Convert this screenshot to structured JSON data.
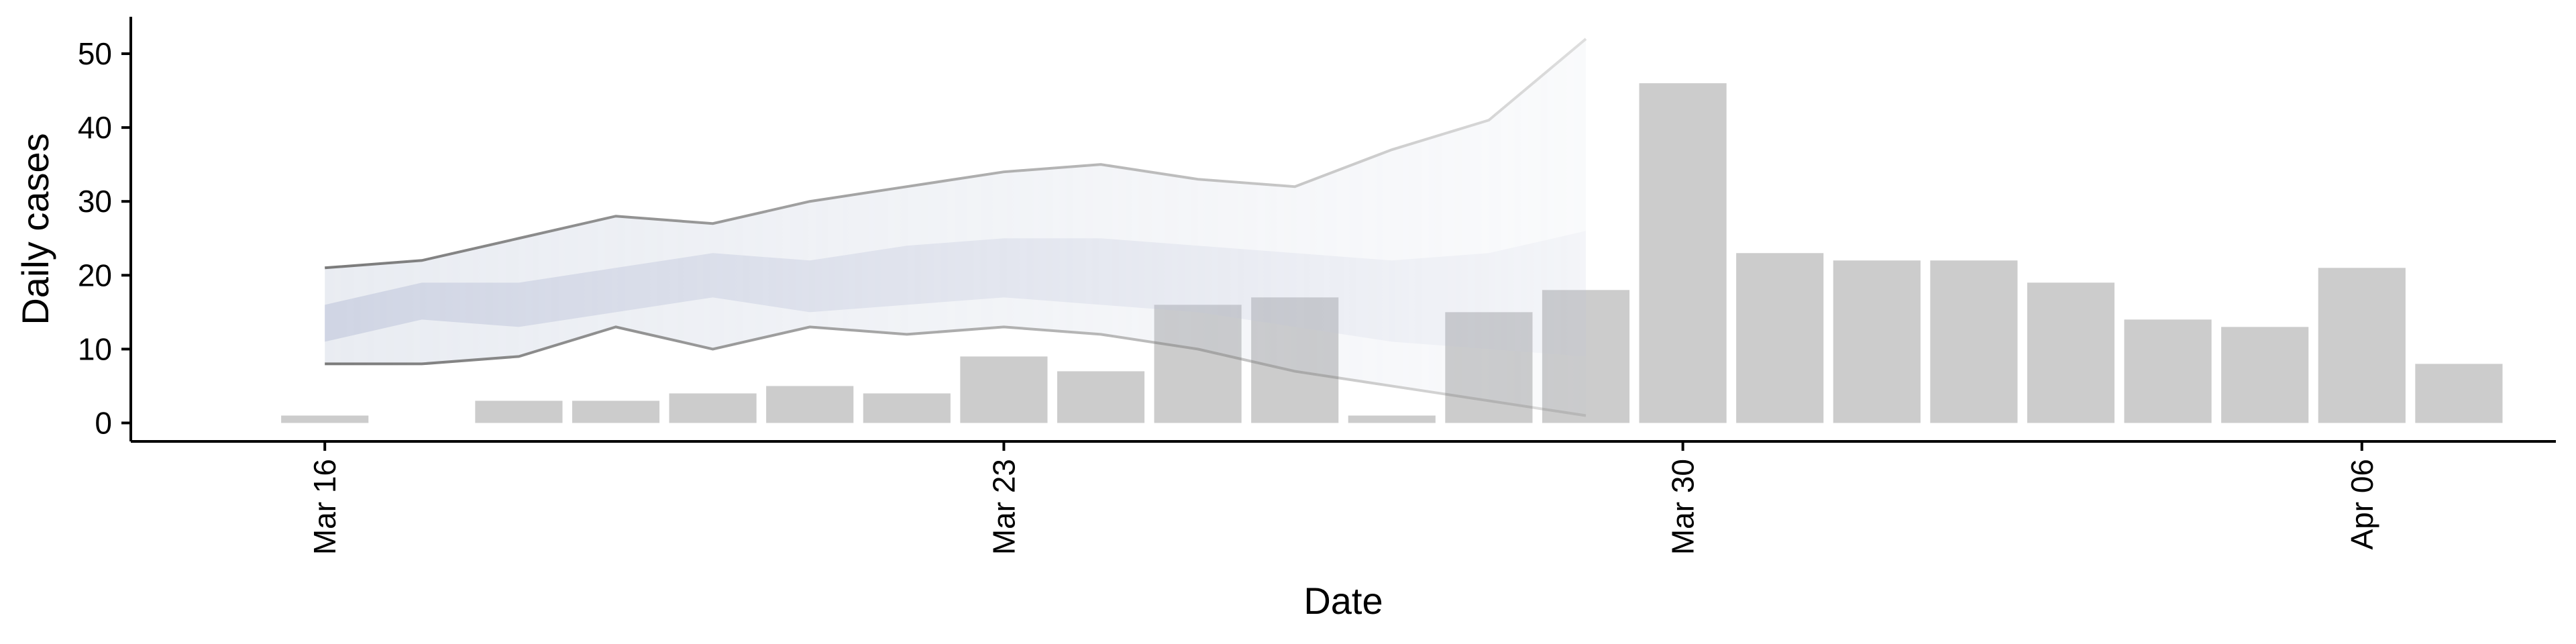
{
  "chart_data": {
    "type": "bar",
    "title": "",
    "xlabel": "Date",
    "ylabel": "Daily cases",
    "ylim": [
      -2.5,
      55
    ],
    "y_ticks": [
      0,
      10,
      20,
      30,
      40,
      50
    ],
    "x_ticks": [
      {
        "date": "2020-03-16",
        "label": "Mar 16"
      },
      {
        "date": "2020-03-23",
        "label": "Mar 23"
      },
      {
        "date": "2020-03-30",
        "label": "Mar 30"
      },
      {
        "date": "2020-04-06",
        "label": "Apr 06"
      }
    ],
    "x_range": [
      "2020-03-14",
      "2020-04-08"
    ],
    "grid": false,
    "colors": {
      "bars": "#cccccc",
      "bands": "#bcc3d8",
      "band_outline": "#7a7a7a",
      "axis": "#000000"
    },
    "bars": {
      "dates": [
        "2020-03-16",
        "2020-03-17",
        "2020-03-18",
        "2020-03-19",
        "2020-03-20",
        "2020-03-21",
        "2020-03-22",
        "2020-03-23",
        "2020-03-24",
        "2020-03-25",
        "2020-03-26",
        "2020-03-27",
        "2020-03-28",
        "2020-03-29",
        "2020-03-30",
        "2020-03-31",
        "2020-04-01",
        "2020-04-02",
        "2020-04-03",
        "2020-04-04",
        "2020-04-05",
        "2020-04-06",
        "2020-04-07"
      ],
      "values": [
        1,
        0,
        3,
        3,
        4,
        5,
        4,
        9,
        7,
        16,
        17,
        1,
        15,
        18,
        46,
        23,
        22,
        22,
        19,
        14,
        13,
        21,
        8
      ]
    },
    "estimate_band": {
      "dates": [
        "2020-03-16",
        "2020-03-17",
        "2020-03-18",
        "2020-03-19",
        "2020-03-20",
        "2020-03-21",
        "2020-03-22",
        "2020-03-23",
        "2020-03-24",
        "2020-03-25",
        "2020-03-26",
        "2020-03-27",
        "2020-03-28",
        "2020-03-29"
      ],
      "outer_upper": [
        21,
        22,
        25,
        28,
        27,
        30,
        32,
        34,
        35,
        33,
        32,
        37,
        41,
        52
      ],
      "outer_lower": [
        8,
        8,
        9,
        13,
        10,
        13,
        12,
        13,
        12,
        10,
        7,
        5,
        3,
        1
      ],
      "inner_upper": [
        16,
        19,
        19,
        21,
        23,
        22,
        24,
        25,
        25,
        24,
        23,
        22,
        23,
        26
      ],
      "inner_lower": [
        11,
        14,
        13,
        15,
        17,
        15,
        16,
        17,
        16,
        15,
        13,
        11,
        10,
        9
      ]
    }
  }
}
